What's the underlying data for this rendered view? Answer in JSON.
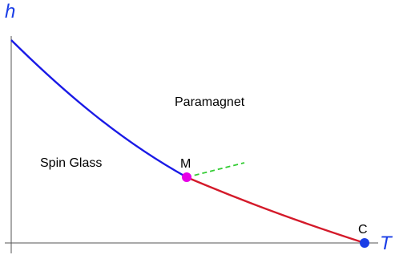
{
  "axes": {
    "y_label": "h",
    "x_label": "T"
  },
  "regions": {
    "spin_glass": "Spin Glass",
    "paramagnet": "Paramagnet"
  },
  "points": {
    "m": {
      "label": "M",
      "color": "#e600e6"
    },
    "c": {
      "label": "C",
      "color": "#1a3de6"
    }
  },
  "curves": {
    "upper_color": "#1a1ae6",
    "lower_color": "#d41a2a",
    "dashed_color": "#33cc33"
  }
}
